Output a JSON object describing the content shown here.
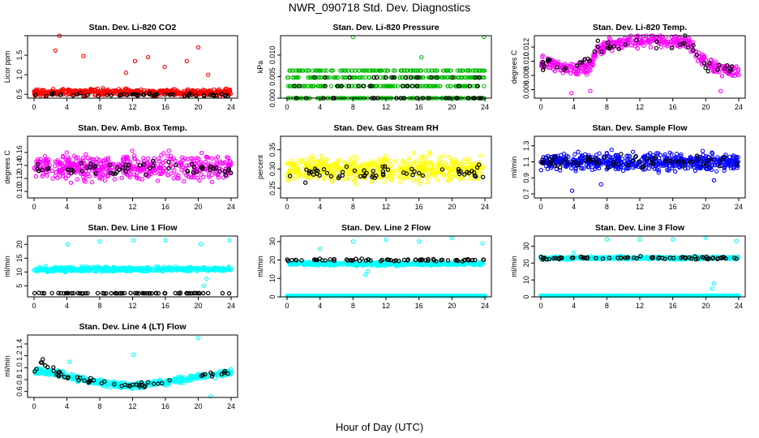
{
  "page": {
    "title": "NWR_090718  Std. Dev. Diagnostics",
    "xlabel": "Hour of Day (UTC)"
  },
  "colors": {
    "red": "#ff0000",
    "green": "#00bb00",
    "magenta": "#ff00ff",
    "yellow": "#ffff00",
    "blue": "#0000ff",
    "cyan": "#00ffff",
    "black": "#000000"
  },
  "chart_data": [
    {
      "type": "scatter",
      "title": "Stan. Dev. Li-820 CO2",
      "ylabel": "Licor ppm",
      "color": "red",
      "xlim": [
        0,
        24
      ],
      "xticks": [
        0,
        4,
        8,
        12,
        16,
        20,
        24
      ],
      "ylim": [
        0.4,
        2.0
      ],
      "yticks": [
        0.5,
        1.0,
        1.5,
        2.0
      ],
      "ytick_labels": [
        "0.5",
        "1.0",
        "1.5",
        ""
      ],
      "main": {
        "mode": "band",
        "base": 0.55,
        "spread": 0.08,
        "n": 460,
        "outliers": [
          [
            2.6,
            1.62
          ],
          [
            3.1,
            2.0
          ],
          [
            6.0,
            1.48
          ],
          [
            11.2,
            1.05
          ],
          [
            12.3,
            1.35
          ],
          [
            13.9,
            1.45
          ],
          [
            15.9,
            1.2
          ],
          [
            18.6,
            1.35
          ],
          [
            20.0,
            1.7
          ],
          [
            21.2,
            1.0
          ]
        ]
      },
      "ref": {
        "mode": "band",
        "base": 0.48,
        "spread": 0.04,
        "n": 55
      }
    },
    {
      "type": "scatter",
      "title": "Stan. Dev. Li-820 Pressure",
      "ylabel": "kPa",
      "color": "green",
      "xlim": [
        0,
        24
      ],
      "xticks": [
        0,
        4,
        8,
        12,
        16,
        20,
        24
      ],
      "ylim": [
        0.0,
        0.0145
      ],
      "yticks": [
        0.0,
        0.005,
        0.01
      ],
      "ytick_labels": [
        "0.000",
        "0.005",
        "0.010"
      ],
      "main": {
        "mode": "levels",
        "levels": [
          0.0,
          0.0028,
          0.0048,
          0.0064
        ],
        "n": 520,
        "outliers": [
          [
            8.0,
            0.0142
          ],
          [
            16.3,
            0.0095
          ],
          [
            23.9,
            0.0142
          ]
        ]
      },
      "ref": {
        "mode": "levels",
        "levels": [
          0.0,
          0.0028,
          0.0048
        ],
        "n": 60
      }
    },
    {
      "type": "scatter",
      "title": "Stan. Dev. Li-820 Temp.",
      "ylabel": "degrees C",
      "color": "magenta",
      "xlim": [
        0,
        24
      ],
      "xticks": [
        0,
        4,
        8,
        12,
        16,
        20,
        24
      ],
      "ylim": [
        0.0048,
        0.0136
      ],
      "yticks": [
        0.006,
        0.008,
        0.01,
        0.012
      ],
      "ytick_labels": [
        "0.006",
        "0.008",
        "0.010",
        "0.012"
      ],
      "main": {
        "mode": "curve",
        "pts": [
          [
            0,
            0.0098
          ],
          [
            2,
            0.0095
          ],
          [
            4,
            0.0087
          ],
          [
            6,
            0.0095
          ],
          [
            7,
            0.0118
          ],
          [
            9,
            0.0125
          ],
          [
            12,
            0.0129
          ],
          [
            16,
            0.0129
          ],
          [
            18,
            0.0126
          ],
          [
            19.5,
            0.0102
          ],
          [
            22,
            0.0088
          ],
          [
            24,
            0.0085
          ]
        ],
        "spread": 0.0009,
        "n": 420,
        "outliers": [
          [
            3.7,
            0.0055
          ],
          [
            6.0,
            0.0058
          ],
          [
            21.8,
            0.0058
          ]
        ]
      },
      "ref": {
        "mode": "curve",
        "pts": [
          [
            0,
            0.0098
          ],
          [
            4,
            0.0088
          ],
          [
            7,
            0.0118
          ],
          [
            12,
            0.0127
          ],
          [
            18,
            0.0125
          ],
          [
            20,
            0.0095
          ],
          [
            24,
            0.0088
          ]
        ],
        "spread": 0.0008,
        "n": 50
      }
    },
    {
      "type": "scatter",
      "title": "Stan. Dev. Amb. Box Temp.",
      "ylabel": "degrees C",
      "color": "magenta",
      "xlim": [
        0,
        24
      ],
      "xticks": [
        0,
        4,
        8,
        12,
        16,
        20,
        24
      ],
      "ylim": [
        0.09,
        0.185
      ],
      "yticks": [
        0.1,
        0.12,
        0.14,
        0.16
      ],
      "ytick_labels": [
        "0.10",
        "0.12",
        "0.14",
        "0.16"
      ],
      "main": {
        "mode": "band",
        "base": 0.137,
        "spread": 0.018,
        "n": 520,
        "outliers": []
      },
      "ref": {
        "mode": "band",
        "base": 0.135,
        "spread": 0.012,
        "n": 60
      }
    },
    {
      "type": "scatter",
      "title": "Stan. Dev. Gas Stream RH",
      "ylabel": "percent",
      "color": "yellow",
      "xlim": [
        0,
        24
      ],
      "xticks": [
        0,
        4,
        8,
        12,
        16,
        20,
        24
      ],
      "ylim": [
        0.225,
        0.385
      ],
      "yticks": [
        0.25,
        0.3,
        0.35
      ],
      "ytick_labels": [
        "0.25",
        "0.30",
        "0.35"
      ],
      "main": {
        "mode": "band",
        "base": 0.3,
        "spread": 0.03,
        "n": 560,
        "outliers": []
      },
      "ref": {
        "mode": "band",
        "base": 0.29,
        "spread": 0.022,
        "n": 60
      }
    },
    {
      "type": "scatter",
      "title": "Stan. Dev. Sample Flow",
      "ylabel": "ml/min",
      "color": "blue",
      "xlim": [
        0,
        24
      ],
      "xticks": [
        0,
        4,
        8,
        12,
        16,
        20,
        24
      ],
      "ylim": [
        0.65,
        1.42
      ],
      "yticks": [
        0.7,
        0.9,
        1.1,
        1.3
      ],
      "ytick_labels": [
        "0.7",
        "0.9",
        "1.1",
        "1.3"
      ],
      "main": {
        "mode": "band",
        "base": 1.1,
        "spread": 0.1,
        "n": 560,
        "outliers": [
          [
            3.8,
            0.74
          ],
          [
            7.3,
            0.82
          ],
          [
            21.0,
            0.87
          ]
        ]
      },
      "ref": {
        "mode": "band",
        "base": 1.1,
        "spread": 0.08,
        "n": 60
      }
    },
    {
      "type": "scatter",
      "title": "Stan. Dev. Line 1 Flow",
      "ylabel": "ml/min",
      "color": "cyan",
      "xlim": [
        0,
        24
      ],
      "xticks": [
        0,
        4,
        8,
        12,
        16,
        20,
        24
      ],
      "ylim": [
        1.0,
        23.0
      ],
      "yticks": [
        5,
        10,
        15,
        20
      ],
      "ytick_labels": [
        "5",
        "10",
        "15",
        "20"
      ],
      "main": {
        "mode": "band",
        "base": 11.0,
        "spread": 0.8,
        "n": 520,
        "outliers": [
          [
            4.1,
            20.0
          ],
          [
            8.0,
            21.0
          ],
          [
            12.1,
            21.5
          ],
          [
            16.0,
            21.5
          ],
          [
            20.3,
            20.0
          ],
          [
            23.8,
            21.5
          ],
          [
            20.7,
            5.0
          ],
          [
            21.0,
            7.5
          ]
        ]
      },
      "ref": {
        "mode": "line",
        "base": 2.3,
        "spread": 0.1,
        "n": 70
      }
    },
    {
      "type": "scatter",
      "title": "Stan. Dev. Line 2 Flow",
      "ylabel": "ml/min",
      "color": "cyan",
      "xlim": [
        0,
        24
      ],
      "xticks": [
        0,
        4,
        8,
        12,
        16,
        20,
        24
      ],
      "ylim": [
        0,
        33
      ],
      "yticks": [
        0,
        10,
        20,
        30
      ],
      "ytick_labels": [
        "0",
        "10",
        "20",
        "30"
      ],
      "main": {
        "mode": "band",
        "base": 18.0,
        "spread": 1.0,
        "n": 480,
        "outliers": [
          [
            4.0,
            26.0
          ],
          [
            8.0,
            30.0
          ],
          [
            12.0,
            31.0
          ],
          [
            16.0,
            30.0
          ],
          [
            20.0,
            32.0
          ],
          [
            23.7,
            29.0
          ],
          [
            9.5,
            12.0
          ],
          [
            9.8,
            14.0
          ]
        ]
      },
      "ref": {
        "mode": "band",
        "base": 20.0,
        "spread": 0.6,
        "n": 70
      },
      "floor": {
        "value": 0.6,
        "n": 260
      }
    },
    {
      "type": "scatter",
      "title": "Stan. Dev. Line 3 Flow",
      "ylabel": "ml/min",
      "color": "cyan",
      "xlim": [
        0,
        24
      ],
      "xticks": [
        0,
        4,
        8,
        12,
        16,
        20,
        24
      ],
      "ylim": [
        0,
        36
      ],
      "yticks": [
        0,
        10,
        20,
        30
      ],
      "ytick_labels": [
        "0",
        "10",
        "20",
        "30"
      ],
      "main": {
        "mode": "band",
        "base": 23.0,
        "spread": 0.8,
        "n": 480,
        "outliers": [
          [
            4.0,
            26.0
          ],
          [
            8.0,
            34.0
          ],
          [
            12.0,
            34.0
          ],
          [
            16.0,
            34.0
          ],
          [
            20.0,
            35.0
          ],
          [
            23.7,
            33.0
          ],
          [
            20.8,
            5.0
          ],
          [
            21.0,
            8.0
          ]
        ]
      },
      "ref": {
        "mode": "band",
        "base": 23.0,
        "spread": 0.8,
        "n": 70
      },
      "floor": {
        "value": 0.7,
        "n": 260
      }
    },
    {
      "type": "scatter",
      "title": "Stan. Dev. Line 4 (LT) Flow",
      "ylabel": "ml/min",
      "color": "cyan",
      "xlim": [
        0,
        24
      ],
      "xticks": [
        0,
        4,
        8,
        12,
        16,
        20,
        24
      ],
      "ylim": [
        0.5,
        1.55
      ],
      "yticks": [
        0.6,
        0.8,
        1.0,
        1.2,
        1.4
      ],
      "ytick_labels": [
        "0.6",
        "0.8",
        "1.0",
        "1.2",
        "1.4"
      ],
      "main": {
        "mode": "curve",
        "pts": [
          [
            0,
            0.95
          ],
          [
            3,
            0.9
          ],
          [
            6,
            0.8
          ],
          [
            9,
            0.73
          ],
          [
            12,
            0.7
          ],
          [
            16,
            0.75
          ],
          [
            20,
            0.85
          ],
          [
            24,
            0.92
          ]
        ],
        "spread": 0.05,
        "n": 500,
        "outliers": [
          [
            4.3,
            1.1
          ],
          [
            12.1,
            1.22
          ],
          [
            20.0,
            1.5
          ],
          [
            21.5,
            0.52
          ]
        ]
      },
      "ref": {
        "mode": "curve",
        "pts": [
          [
            0,
            0.95
          ],
          [
            1,
            1.1
          ],
          [
            3,
            0.9
          ],
          [
            6,
            0.8
          ],
          [
            9,
            0.73
          ],
          [
            12,
            0.7
          ],
          [
            16,
            0.75
          ],
          [
            20,
            0.85
          ],
          [
            24,
            0.92
          ]
        ],
        "spread": 0.05,
        "n": 60
      }
    }
  ]
}
